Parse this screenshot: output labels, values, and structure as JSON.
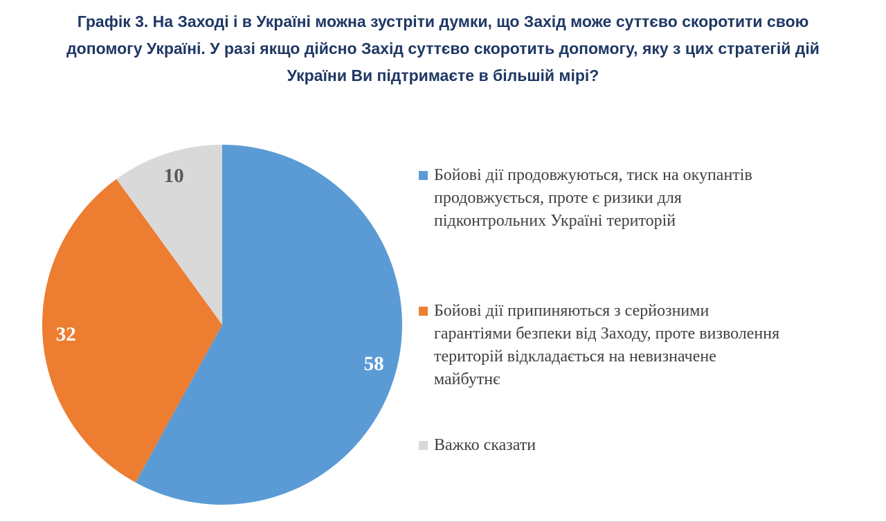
{
  "chart_data": {
    "type": "pie",
    "title": "Графік 3. На Заході і в Україні можна зустріти думки, що Захід може суттєво скоротити свою допомогу Україні. У разі якщо дійсно Захід суттєво скоротить допомогу, яку з цих стратегій дій України Ви підтримаєте в більшій мірі?",
    "labels": [
      "Бойові дії продовжуються, тиск на окупантів продовжується, проте є ризики для підконтрольних Україні територій",
      "Бойові дії припиняються з серйозними гарантіями безпеки від Заходу, проте визволення територій відкладається на невизначене майбутнє",
      "Важко сказати"
    ],
    "values": [
      58,
      32,
      10
    ],
    "colors": [
      "#5B9BD5",
      "#ED7D31",
      "#D9D9D9"
    ],
    "value_label_colors": [
      "#FFFFFF",
      "#FFFFFF",
      "#595959"
    ],
    "start_angle_deg": 0,
    "direction": "clockwise",
    "legend_position": "right",
    "label_radius_factor": 0.87,
    "title_color": "#1F3864"
  }
}
